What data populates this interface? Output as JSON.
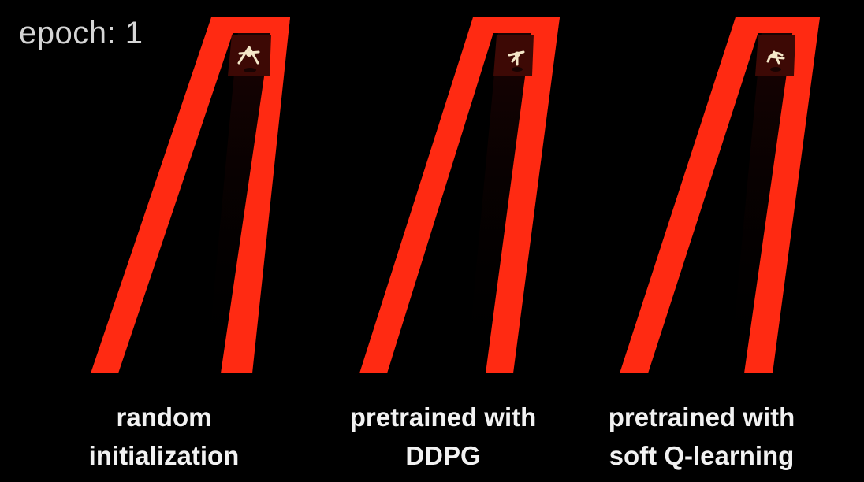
{
  "epoch_label": "epoch: 1",
  "panels": [
    {
      "id": "random",
      "caption_lines": [
        "random",
        "initialization"
      ]
    },
    {
      "id": "ddpg",
      "caption_lines": [
        "pretrained with",
        "DDPG"
      ]
    },
    {
      "id": "sql",
      "caption_lines": [
        "pretrained with",
        "soft Q-learning"
      ]
    }
  ],
  "colors": {
    "background": "#000000",
    "track": "#ff2a12",
    "track_shadow": "#3a0806",
    "start_box": "#3d0905",
    "agent": "#f3e6c8",
    "caption_text": "#f2f2f2",
    "epoch_text": "#d6d6d6"
  }
}
